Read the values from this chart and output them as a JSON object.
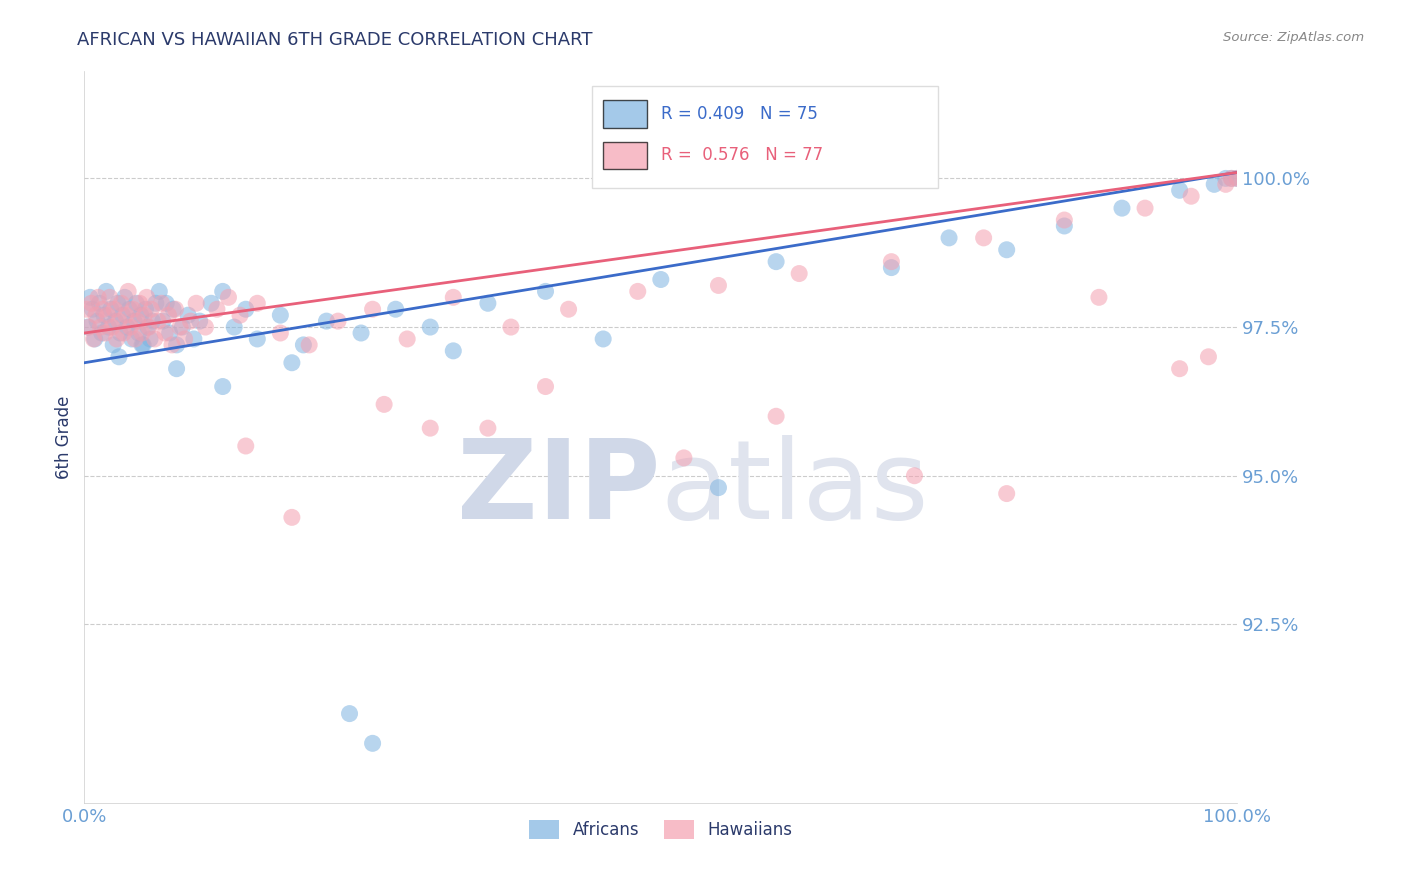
{
  "title": "AFRICAN VS HAWAIIAN 6TH GRADE CORRELATION CHART",
  "source_text": "Source: ZipAtlas.com",
  "ylabel": "6th Grade",
  "xlim": [
    0.0,
    100.0
  ],
  "ylim": [
    89.5,
    101.8
  ],
  "yticks": [
    92.5,
    95.0,
    97.5,
    100.0
  ],
  "ytick_labels": [
    "92.5%",
    "95.0%",
    "97.5%",
    "100.0%"
  ],
  "xtick_labels": [
    "0.0%",
    "100.0%"
  ],
  "xticks": [
    0.0,
    100.0
  ],
  "blue_R": 0.409,
  "blue_N": 75,
  "pink_R": 0.576,
  "pink_N": 77,
  "blue_color": "#7EB3E0",
  "pink_color": "#F4A0B0",
  "blue_line_color": "#3B6BC9",
  "pink_line_color": "#E8607A",
  "title_color": "#2B3A6B",
  "axis_label_color": "#2B3A6B",
  "tick_color": "#6B9FD4",
  "grid_color": "#CCCCCC",
  "watermark_ZIP_color": "#D0D8E8",
  "watermark_atlas_color": "#E0E4EE",
  "background_color": "#FFFFFF",
  "blue_line_start_y": 96.9,
  "blue_line_end_y": 100.1,
  "pink_line_start_y": 97.4,
  "pink_line_end_y": 100.1,
  "blue_scatter_x": [
    0.3,
    0.5,
    0.7,
    0.9,
    1.1,
    1.3,
    1.5,
    1.7,
    1.9,
    2.1,
    2.3,
    2.5,
    2.7,
    2.9,
    3.1,
    3.3,
    3.5,
    3.7,
    3.9,
    4.1,
    4.3,
    4.5,
    4.7,
    4.9,
    5.1,
    5.3,
    5.5,
    5.7,
    5.9,
    6.2,
    6.5,
    6.8,
    7.1,
    7.4,
    7.7,
    8.0,
    8.5,
    9.0,
    9.5,
    10.0,
    11.0,
    12.0,
    13.0,
    14.0,
    15.0,
    17.0,
    19.0,
    21.0,
    24.0,
    27.0,
    30.0,
    35.0,
    40.0,
    50.0,
    60.0,
    70.0,
    75.0,
    80.0,
    85.0,
    90.0,
    95.0,
    98.0,
    99.0,
    99.5,
    100.0,
    23.0,
    25.0,
    45.0,
    3.0,
    5.0,
    8.0,
    12.0,
    18.0,
    32.0,
    55.0
  ],
  "blue_scatter_y": [
    97.5,
    98.0,
    97.8,
    97.3,
    97.6,
    97.9,
    97.4,
    97.7,
    98.1,
    97.5,
    97.8,
    97.2,
    97.6,
    97.9,
    97.4,
    97.7,
    98.0,
    97.5,
    97.8,
    97.3,
    97.6,
    97.9,
    97.4,
    97.7,
    97.2,
    97.8,
    97.5,
    97.3,
    97.6,
    97.9,
    98.1,
    97.6,
    97.9,
    97.4,
    97.8,
    97.2,
    97.5,
    97.7,
    97.3,
    97.6,
    97.9,
    98.1,
    97.5,
    97.8,
    97.3,
    97.7,
    97.2,
    97.6,
    97.4,
    97.8,
    97.5,
    97.9,
    98.1,
    98.3,
    98.6,
    98.5,
    99.0,
    98.8,
    99.2,
    99.5,
    99.8,
    99.9,
    100.0,
    100.0,
    100.0,
    91.0,
    90.5,
    97.3,
    97.0,
    97.2,
    96.8,
    96.5,
    96.9,
    97.1,
    94.8
  ],
  "pink_scatter_x": [
    0.2,
    0.4,
    0.6,
    0.8,
    1.0,
    1.2,
    1.4,
    1.6,
    1.8,
    2.0,
    2.2,
    2.4,
    2.6,
    2.8,
    3.0,
    3.2,
    3.4,
    3.6,
    3.8,
    4.0,
    4.2,
    4.4,
    4.6,
    4.8,
    5.0,
    5.2,
    5.4,
    5.6,
    5.8,
    6.1,
    6.4,
    6.7,
    7.0,
    7.3,
    7.6,
    7.9,
    8.3,
    8.7,
    9.2,
    9.7,
    10.5,
    11.5,
    12.5,
    13.5,
    15.0,
    17.0,
    19.5,
    22.0,
    25.0,
    28.0,
    32.0,
    37.0,
    42.0,
    48.0,
    55.0,
    62.0,
    70.0,
    78.0,
    85.0,
    92.0,
    96.0,
    99.0,
    99.5,
    100.0,
    30.0,
    40.0,
    52.0,
    60.0,
    72.0,
    80.0,
    88.0,
    95.0,
    97.5,
    14.0,
    18.0,
    26.0,
    35.0
  ],
  "pink_scatter_y": [
    97.8,
    97.5,
    97.9,
    97.3,
    97.7,
    98.0,
    97.5,
    97.8,
    97.4,
    97.7,
    98.0,
    97.5,
    97.8,
    97.3,
    97.6,
    97.9,
    97.4,
    97.7,
    98.1,
    97.5,
    97.8,
    97.3,
    97.6,
    97.9,
    97.4,
    97.7,
    98.0,
    97.5,
    97.8,
    97.3,
    97.6,
    97.9,
    97.4,
    97.7,
    97.2,
    97.8,
    97.5,
    97.3,
    97.6,
    97.9,
    97.5,
    97.8,
    98.0,
    97.7,
    97.9,
    97.4,
    97.2,
    97.6,
    97.8,
    97.3,
    98.0,
    97.5,
    97.8,
    98.1,
    98.2,
    98.4,
    98.6,
    99.0,
    99.3,
    99.5,
    99.7,
    99.9,
    100.0,
    100.0,
    95.8,
    96.5,
    95.3,
    96.0,
    95.0,
    94.7,
    98.0,
    96.8,
    97.0,
    95.5,
    94.3,
    96.2,
    95.8
  ]
}
